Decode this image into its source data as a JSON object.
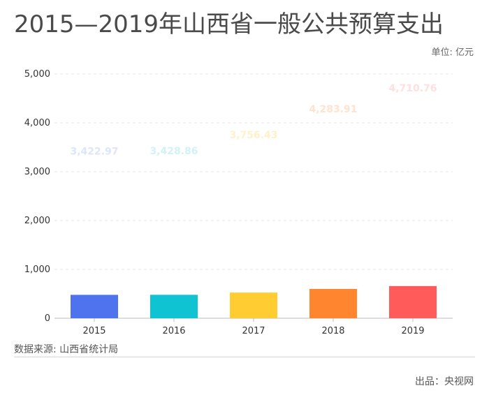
{
  "title": "2015—2019年山西省一般公共预算支出",
  "unit": "单位: 亿元",
  "source": "数据来源: 山西省统计局",
  "publisher": "出品：央视网",
  "chart_data": {
    "type": "bar",
    "categories": [
      "2015",
      "2016",
      "2017",
      "2018",
      "2019"
    ],
    "values": [
      3422.97,
      3428.86,
      3756.43,
      4283.91,
      4710.76
    ],
    "value_labels": [
      "3,422.97",
      "3,428.86",
      "3,756.43",
      "4,283.91",
      "4,710.76"
    ],
    "bar_progress": 0.14,
    "ylim": [
      0,
      5000
    ],
    "yticks": [
      0,
      1000,
      2000,
      3000,
      4000,
      5000
    ],
    "ytick_labels": [
      "0",
      "1,000",
      "2,000",
      "3,000",
      "4,000",
      "5,000"
    ],
    "colors": [
      "#4e73ec",
      "#10c3d3",
      "#ffcd31",
      "#ff862e",
      "#ff5b5b"
    ],
    "label_colors": [
      "#dde5fb",
      "#d2f2f5",
      "#fff1c9",
      "#ffe3cf",
      "#ffdfdf"
    ],
    "grid": true
  }
}
